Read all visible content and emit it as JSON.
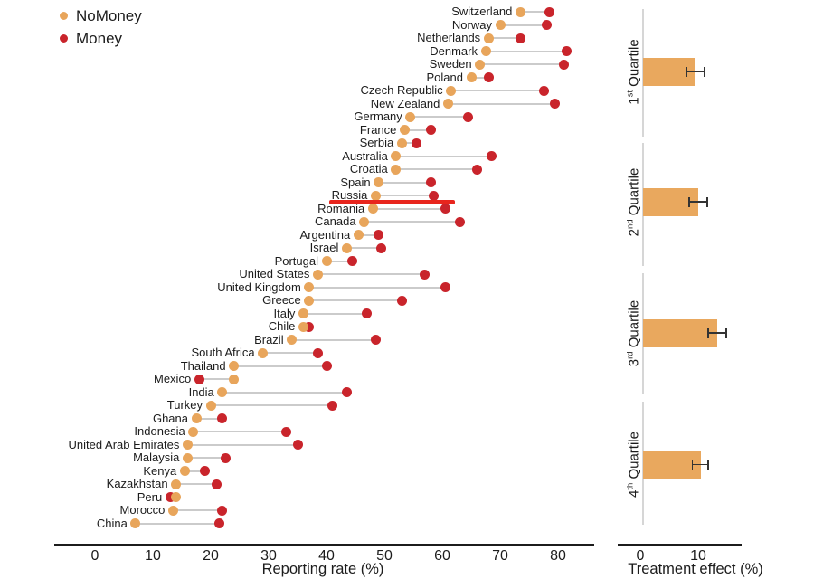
{
  "figure_title": "Lost wallet reporting rates by country with treatment effect by quartile",
  "legend": {
    "items": [
      {
        "label": "NoMoney",
        "color": "#E8A55B"
      },
      {
        "label": "Money",
        "color": "#C9242B"
      }
    ]
  },
  "colors": {
    "nomoney_dot": "#E8A55B",
    "money_dot": "#C9242B",
    "connector": "#CBCBCB",
    "highlight_line": "#E8251D",
    "bar": "#E9A85E",
    "axis": "#1C1C1C",
    "quartile_axis": "#D6D6D6",
    "error_bar": "#333333",
    "text": "#1C1C1C"
  },
  "chart_data": [
    {
      "type": "dumbbell",
      "xlabel": "Reporting rate (%)",
      "x_ticks": [
        0,
        10,
        20,
        30,
        40,
        50,
        60,
        70,
        80
      ],
      "xlim": [
        0,
        86
      ],
      "series_names": [
        "NoMoney",
        "Money"
      ],
      "countries": [
        "Switzerland",
        "Norway",
        "Netherlands",
        "Denmark",
        "Sweden",
        "Poland",
        "Czech Republic",
        "New Zealand",
        "Germany",
        "France",
        "Serbia",
        "Australia",
        "Croatia",
        "Spain",
        "Russia",
        "Romania",
        "Canada",
        "Argentina",
        "Israel",
        "Portugal",
        "United States",
        "United Kingdom",
        "Greece",
        "Italy",
        "Chile",
        "Brazil",
        "South Africa",
        "Thailand",
        "Mexico",
        "India",
        "Turkey",
        "Ghana",
        "Indonesia",
        "United Arab Emirates",
        "Malaysia",
        "Kenya",
        "Kazakhstan",
        "Peru",
        "Morocco",
        "China"
      ],
      "nomoney": [
        73.5,
        70,
        68,
        67.5,
        66.5,
        65,
        61.5,
        61,
        54.5,
        53.5,
        53,
        52,
        52,
        49,
        48.5,
        48,
        46.5,
        45.5,
        43.5,
        40,
        38.5,
        37,
        37,
        36,
        36,
        34,
        29,
        24,
        24,
        22,
        20,
        17.5,
        17,
        16,
        16,
        15.5,
        14,
        14,
        13.5,
        7
      ],
      "money": [
        78.5,
        78,
        73.5,
        81.5,
        81,
        68,
        77.5,
        79.5,
        64.5,
        58,
        55.5,
        68.5,
        66,
        58,
        58.5,
        60.5,
        63,
        49,
        49.5,
        44.5,
        57,
        60.5,
        53,
        47,
        37,
        48.5,
        38.5,
        40,
        18,
        43.5,
        41,
        22,
        33,
        35,
        22.5,
        19,
        21,
        13,
        22,
        21.5
      ],
      "annotation": {
        "type": "highlight-line",
        "color": "#E8251D",
        "x_start_value": 40.5,
        "x_end_value": 62.2,
        "between_rows": [
          "Russia",
          "Romania"
        ]
      }
    },
    {
      "type": "bar",
      "orientation": "horizontal",
      "xlabel": "Treatment effect (%)",
      "x_ticks": [
        0,
        10
      ],
      "xlim": [
        0,
        17
      ],
      "categories": [
        "1st Quartile",
        "2nd Quartile",
        "3rd Quartile",
        "4th Quartile"
      ],
      "category_parts": [
        {
          "num": "1",
          "suffix": "st",
          "word": "Quartile"
        },
        {
          "num": "2",
          "suffix": "nd",
          "word": "Quartile"
        },
        {
          "num": "3",
          "suffix": "rd",
          "word": "Quartile"
        },
        {
          "num": "4",
          "suffix": "th",
          "word": "Quartile"
        }
      ],
      "values": [
        9.4,
        10.0,
        13.3,
        10.5
      ],
      "ci_low": [
        8.0,
        8.4,
        11.7,
        9.0
      ],
      "ci_high": [
        11.0,
        11.6,
        14.8,
        11.7
      ],
      "bar_color": "#E9A85E"
    }
  ]
}
